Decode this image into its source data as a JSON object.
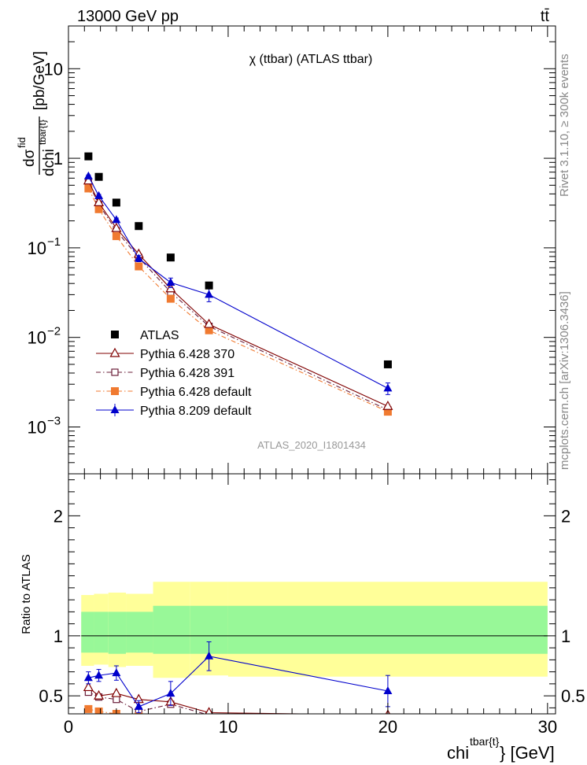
{
  "header": {
    "left": "13000 GeV pp",
    "right": "tt̄"
  },
  "plot_title": "χ (ttbar) (ATLAS ttbar)",
  "analysis_tag": "ATLAS_2020_I1801434",
  "side_labels": {
    "rivet": "Rivet 3.1.10, ≥ 300k events",
    "mcplots": "mcplots.cern.ch [arXiv:1306.3436]"
  },
  "colors": {
    "ATLAS": "#000000",
    "py370": "#800000",
    "py391": "#6b1f3a",
    "pydef": "#f07a30",
    "py8": "#0000cc",
    "band_inner": "#98f898",
    "band_outer": "#ffff99"
  },
  "chart_data": [
    {
      "type": "scatter",
      "title": "χ (ttbar) (ATLAS ttbar)",
      "ylabel": "dσ^fid / dchi^tbar{t} [pb/GeV]",
      "ylabel_parts": {
        "num": "dσ",
        "num_sup": "fid",
        "den": "dchi",
        "den_sup": "tbar{t}",
        "unit": "[pb/GeV]"
      },
      "yscale": "log",
      "ylim": [
        0.0003,
        30
      ],
      "xlim": [
        0,
        30.5
      ],
      "y_ticks": [
        {
          "v": 10,
          "base": "10",
          "exp": ""
        },
        {
          "v": 1,
          "base": "1",
          "exp": ""
        },
        {
          "v": 0.1,
          "base": "10",
          "exp": "−1"
        },
        {
          "v": 0.01,
          "base": "10",
          "exp": "−2"
        },
        {
          "v": 0.001,
          "base": "10",
          "exp": "−3"
        }
      ],
      "legend_position": "bottom-left",
      "x": [
        1.25,
        1.9,
        3.0,
        4.4,
        6.4,
        8.8,
        20.0
      ],
      "series": [
        {
          "name": "ATLAS",
          "key": "ATLAS",
          "marker": "square",
          "line": false,
          "values": [
            1.05,
            0.62,
            0.32,
            0.175,
            0.078,
            0.038,
            0.005
          ]
        },
        {
          "name": "Pythia 6.428 370",
          "key": "py370",
          "marker": "triangle-open",
          "line": "solid",
          "values": [
            0.56,
            0.32,
            0.165,
            0.085,
            0.035,
            0.014,
            0.0017
          ]
        },
        {
          "name": "Pythia 6.428 391",
          "key": "py391",
          "marker": "square-open",
          "line": "dashdot",
          "values": [
            0.53,
            0.305,
            0.155,
            0.078,
            0.032,
            0.0133,
            0.00155
          ]
        },
        {
          "name": "Pythia 6.428 default",
          "key": "pydef",
          "marker": "square",
          "line": "dashdot",
          "values": [
            0.46,
            0.27,
            0.135,
            0.062,
            0.027,
            0.012,
            0.00148
          ]
        },
        {
          "name": "Pythia 8.209 default",
          "key": "py8",
          "marker": "triangle",
          "line": "solid",
          "values": [
            0.63,
            0.38,
            0.205,
            0.076,
            0.041,
            0.03,
            0.0027
          ],
          "errors": [
            0.02,
            0.015,
            0.01,
            0.006,
            0.005,
            0.005,
            0.0004
          ]
        }
      ]
    },
    {
      "type": "scatter",
      "ylabel": "Ratio to ATLAS",
      "xlabel": "chi^tbar{t} [GeV]",
      "xlabel_parts": {
        "base": "chi",
        "sup": "tbar{t}",
        "unit": "} [GeV]"
      },
      "ylim": [
        0.35,
        2.35
      ],
      "xlim": [
        0,
        30.5
      ],
      "x_ticks": [
        0,
        10,
        20,
        30
      ],
      "y_ticks": [
        0.5,
        1,
        2
      ],
      "bands": {
        "edges": [
          0.8,
          1.6,
          2.5,
          3.6,
          5.3,
          7.6,
          10.0,
          30.0
        ],
        "inner_upper": [
          1.2,
          1.2,
          1.2,
          1.2,
          1.25,
          1.25,
          1.25
        ],
        "inner_lower": [
          0.86,
          0.86,
          0.85,
          0.86,
          0.85,
          0.85,
          0.85
        ],
        "outer_upper": [
          1.34,
          1.35,
          1.36,
          1.35,
          1.45,
          1.45,
          1.45
        ],
        "outer_lower": [
          0.75,
          0.76,
          0.74,
          0.75,
          0.65,
          0.67,
          0.66
        ]
      },
      "x": [
        1.25,
        1.9,
        3.0,
        4.4,
        6.4,
        8.8,
        20.0
      ],
      "series": [
        {
          "name": "Pythia 6.428 370",
          "key": "py370",
          "marker": "triangle-open",
          "line": "solid",
          "values": [
            0.57,
            0.5,
            0.52,
            0.47,
            0.45,
            0.36,
            0.34
          ]
        },
        {
          "name": "Pythia 6.428 391",
          "key": "py391",
          "marker": "square-open",
          "line": "dashdot",
          "values": [
            0.53,
            0.49,
            0.47,
            0.37,
            0.43,
            0.34,
            0.31
          ]
        },
        {
          "name": "Pythia 6.428 default",
          "key": "pydef",
          "marker": "square",
          "line": "dashdot",
          "values": [
            0.39,
            0.37,
            0.35,
            0.33,
            0.32,
            0.3,
            0.29
          ]
        },
        {
          "name": "Pythia 8.209 default",
          "key": "py8",
          "marker": "triangle",
          "line": "solid",
          "values": [
            0.65,
            0.67,
            0.69,
            0.41,
            0.52,
            0.83,
            0.54
          ],
          "errors": [
            0.05,
            0.05,
            0.06,
            0.05,
            0.1,
            0.12,
            0.13
          ]
        }
      ]
    }
  ]
}
